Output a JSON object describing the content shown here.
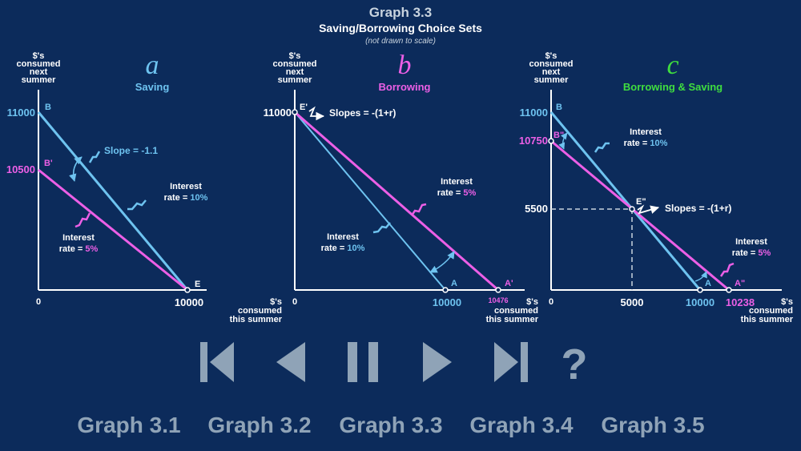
{
  "header": {
    "title": "Graph 3.3",
    "subtitle": "Saving/Borrowing Choice Sets",
    "note": "(not drawn to scale)"
  },
  "colors": {
    "background": "#0c2b5b",
    "blue": "#6ec3f0",
    "magenta": "#ec5fe6",
    "green": "#3fdd3f",
    "white": "#ffffff",
    "controls": "#8fa3b7"
  },
  "common": {
    "y_axis_label": [
      "$'s",
      "consumed",
      "next",
      "summer"
    ],
    "x_axis_label": [
      "$'s",
      "consumed",
      "this summer"
    ],
    "origin": "0"
  },
  "panels": {
    "a": {
      "letter": "a",
      "title": "Saving",
      "y_tick_high": "11000",
      "y_tick_low": "10500",
      "x_tick": "10000",
      "point_b": "B",
      "point_b2": "B'",
      "point_e": "E",
      "slope_label": "Slope = -1.1",
      "blue_label": [
        "Interest",
        "rate = ",
        "10%"
      ],
      "pink_label": [
        "Interest",
        "rate = ",
        "5%"
      ]
    },
    "b": {
      "letter": "b",
      "title": "Borrowing",
      "y_tick": "11000",
      "x_tick_a": "10000",
      "x_tick_a2": "10476",
      "point_e": "E'",
      "point_a": "A",
      "point_a2": "A'",
      "slopes_label": "Slopes = -(1+r)",
      "blue_label": [
        "Interest",
        "rate = ",
        "10%"
      ],
      "pink_label": [
        "Interest",
        "rate = ",
        "5%"
      ]
    },
    "c": {
      "letter": "c",
      "title": "Borrowing & Saving",
      "y_tick_high": "11000",
      "y_tick_mid": "10750",
      "y_tick_low": "5500",
      "x_tick_mid": "5000",
      "x_tick_a": "10000",
      "x_tick_a2": "10238",
      "point_b": "B",
      "point_b2": "B\"",
      "point_e": "E\"",
      "point_a": "A",
      "point_a2": "A\"",
      "slopes_label": "Slopes = -(1+r)",
      "blue_label": [
        "Interest",
        "rate = ",
        "10%"
      ],
      "pink_label": [
        "Interest",
        "rate = ",
        "5%"
      ]
    }
  },
  "controls": {
    "first_icon": "skip-to-first-icon",
    "prev_icon": "previous-icon",
    "pause_icon": "pause-icon",
    "next_icon": "next-icon",
    "last_icon": "skip-to-last-icon",
    "help_label": "?"
  },
  "nav": [
    "Graph 3.1",
    "Graph 3.2",
    "Graph 3.3",
    "Graph 3.4",
    "Graph 3.5"
  ]
}
